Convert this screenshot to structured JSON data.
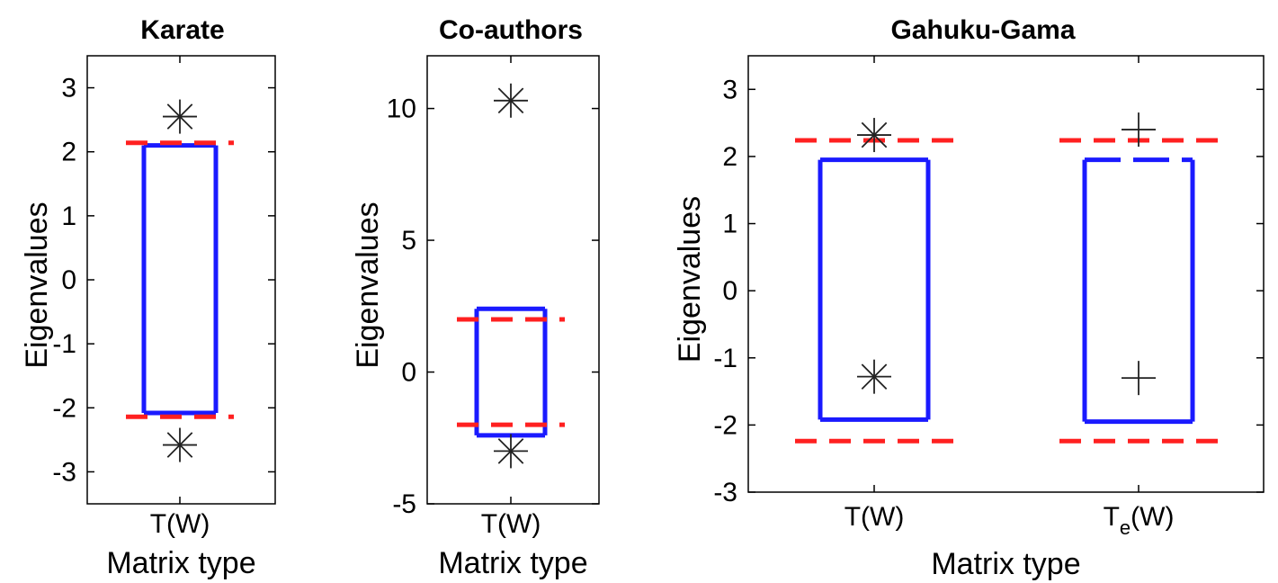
{
  "chart_data": [
    {
      "type": "box",
      "title": "Karate",
      "ylabel": "Eigenvalues",
      "xlabel": "Matrix type",
      "ylim": [
        -3.5,
        3.5
      ],
      "yticks": [
        3,
        2,
        1,
        0,
        -1,
        -2,
        -3
      ],
      "categories": [
        {
          "label": "T(W)",
          "sub": ""
        }
      ],
      "boxes": [
        {
          "low": -2.08,
          "high": 2.1,
          "dashed_top": false
        }
      ],
      "bounds": [
        -2.14,
        2.14
      ],
      "markers": [
        {
          "cat": 0,
          "y": 2.55,
          "symbol": "asterisk"
        },
        {
          "cat": 0,
          "y": -2.58,
          "symbol": "asterisk"
        }
      ]
    },
    {
      "type": "box",
      "title": "Co-authors",
      "ylabel": "Eigenvalues",
      "xlabel": "Matrix type",
      "ylim": [
        -5,
        12
      ],
      "yticks": [
        10,
        5,
        0,
        -5
      ],
      "categories": [
        {
          "label": "T(W)",
          "sub": ""
        }
      ],
      "boxes": [
        {
          "low": -2.4,
          "high": 2.4,
          "dashed_top": false
        }
      ],
      "bounds": [
        -2,
        2
      ],
      "markers": [
        {
          "cat": 0,
          "y": 10.3,
          "symbol": "asterisk"
        },
        {
          "cat": 0,
          "y": -3,
          "symbol": "asterisk"
        }
      ]
    },
    {
      "type": "box",
      "title": "Gahuku-Gama",
      "ylabel": "Eigenvalues",
      "xlabel": "Matrix type",
      "ylim": [
        -3,
        3.5
      ],
      "yticks": [
        3,
        2,
        1,
        0,
        -1,
        -2,
        -3
      ],
      "categories": [
        {
          "label": "T(W)",
          "sub": ""
        },
        {
          "label": "T",
          "sub": "e",
          "suffix": "(W)"
        }
      ],
      "boxes": [
        {
          "low": -1.92,
          "high": 1.95,
          "dashed_top": false
        },
        {
          "low": -1.95,
          "high": 1.95,
          "dashed_top": true
        }
      ],
      "bounds": [
        -2.24,
        2.24
      ],
      "markers": [
        {
          "cat": 0,
          "y": 2.32,
          "symbol": "asterisk"
        },
        {
          "cat": 0,
          "y": -1.28,
          "symbol": "asterisk"
        },
        {
          "cat": 1,
          "y": 2.4,
          "symbol": "plus"
        },
        {
          "cat": 1,
          "y": -1.3,
          "symbol": "plus"
        }
      ]
    }
  ],
  "colors": {
    "box": "#1a1aff",
    "bound": "#ff2020",
    "marker": "#222222",
    "axis": "#000000"
  }
}
